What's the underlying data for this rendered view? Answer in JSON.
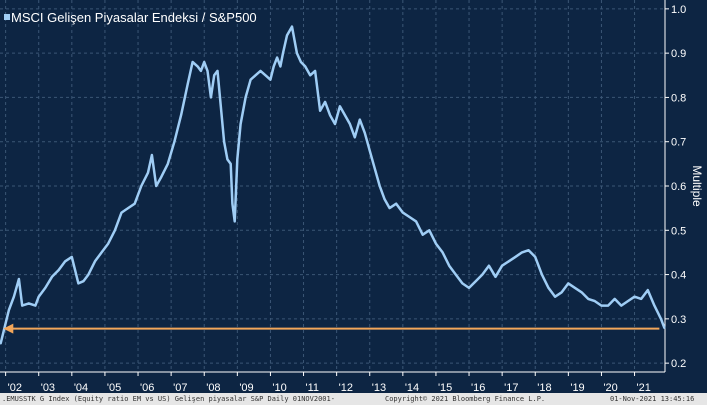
{
  "chart_data": {
    "type": "line",
    "title": "MSCI Gelişen Piyasalar Endeksi / S&P500",
    "ylabel": "Multiple",
    "xlabel": "",
    "ylim": [
      0.18,
      1.02
    ],
    "yticks": [
      0.2,
      0.3,
      0.4,
      0.5,
      0.6,
      0.7,
      0.8,
      0.9,
      1.0
    ],
    "ytick_labels": [
      "0.2",
      "0.3",
      "0.4",
      "0.5",
      "0.6",
      "0.7",
      "0.8",
      "0.9",
      "1.0"
    ],
    "xlim": [
      2001.83,
      2021.92
    ],
    "xticks": [
      2002,
      2003,
      2004,
      2005,
      2006,
      2007,
      2008,
      2009,
      2010,
      2011,
      2012,
      2013,
      2014,
      2015,
      2016,
      2017,
      2018,
      2019,
      2020,
      2021
    ],
    "xtick_labels": [
      "'02",
      "'03",
      "'04",
      "'05",
      "'06",
      "'07",
      "'08",
      "'09",
      "'10",
      "'11",
      "'12",
      "'13",
      "'14",
      "'15",
      "'16",
      "'17",
      "'18",
      "'19",
      "'20",
      "'21"
    ],
    "series": [
      {
        "name": "MSCI Gelişen Piyasalar Endeksi / S&P500",
        "color": "#9fcdf5",
        "x": [
          2001.85,
          2002.0,
          2002.1,
          2002.25,
          2002.4,
          2002.5,
          2002.7,
          2002.9,
          2003.0,
          2003.2,
          2003.4,
          2003.6,
          2003.8,
          2004.0,
          2004.2,
          2004.35,
          2004.5,
          2004.7,
          2004.9,
          2005.1,
          2005.3,
          2005.5,
          2005.7,
          2005.9,
          2006.1,
          2006.3,
          2006.42,
          2006.55,
          2006.7,
          2006.9,
          2007.1,
          2007.3,
          2007.5,
          2007.65,
          2007.8,
          2007.9,
          2008.0,
          2008.1,
          2008.2,
          2008.3,
          2008.4,
          2008.5,
          2008.6,
          2008.7,
          2008.8,
          2008.85,
          2008.92,
          2009.0,
          2009.1,
          2009.25,
          2009.4,
          2009.55,
          2009.7,
          2009.85,
          2010.0,
          2010.1,
          2010.2,
          2010.3,
          2010.38,
          2010.5,
          2010.65,
          2010.8,
          2010.92,
          2011.05,
          2011.2,
          2011.35,
          2011.5,
          2011.65,
          2011.8,
          2011.95,
          2012.1,
          2012.25,
          2012.4,
          2012.55,
          2012.7,
          2012.85,
          2013.0,
          2013.15,
          2013.3,
          2013.45,
          2013.6,
          2013.8,
          2014.0,
          2014.2,
          2014.4,
          2014.6,
          2014.8,
          2015.0,
          2015.2,
          2015.4,
          2015.6,
          2015.8,
          2016.0,
          2016.2,
          2016.4,
          2016.6,
          2016.8,
          2017.0,
          2017.2,
          2017.4,
          2017.6,
          2017.8,
          2018.0,
          2018.2,
          2018.4,
          2018.6,
          2018.8,
          2019.0,
          2019.2,
          2019.4,
          2019.6,
          2019.8,
          2020.0,
          2020.2,
          2020.4,
          2020.6,
          2020.8,
          2021.0,
          2021.2,
          2021.4,
          2021.6,
          2021.8,
          2021.9
        ],
        "y": [
          0.245,
          0.29,
          0.32,
          0.35,
          0.39,
          0.33,
          0.335,
          0.33,
          0.35,
          0.37,
          0.395,
          0.41,
          0.43,
          0.44,
          0.38,
          0.385,
          0.4,
          0.43,
          0.45,
          0.47,
          0.5,
          0.54,
          0.55,
          0.56,
          0.6,
          0.63,
          0.67,
          0.6,
          0.62,
          0.65,
          0.7,
          0.76,
          0.83,
          0.88,
          0.87,
          0.86,
          0.88,
          0.86,
          0.8,
          0.85,
          0.86,
          0.78,
          0.7,
          0.66,
          0.65,
          0.56,
          0.52,
          0.66,
          0.74,
          0.8,
          0.84,
          0.85,
          0.86,
          0.85,
          0.84,
          0.87,
          0.89,
          0.87,
          0.9,
          0.94,
          0.96,
          0.9,
          0.88,
          0.87,
          0.85,
          0.86,
          0.77,
          0.79,
          0.76,
          0.74,
          0.78,
          0.76,
          0.74,
          0.71,
          0.75,
          0.72,
          0.68,
          0.64,
          0.6,
          0.57,
          0.55,
          0.56,
          0.54,
          0.53,
          0.52,
          0.49,
          0.5,
          0.47,
          0.45,
          0.42,
          0.4,
          0.38,
          0.37,
          0.385,
          0.4,
          0.42,
          0.395,
          0.42,
          0.43,
          0.44,
          0.45,
          0.455,
          0.44,
          0.4,
          0.37,
          0.35,
          0.36,
          0.38,
          0.37,
          0.36,
          0.345,
          0.34,
          0.33,
          0.33,
          0.345,
          0.33,
          0.34,
          0.35,
          0.345,
          0.365,
          0.33,
          0.3,
          0.28
        ]
      }
    ],
    "annotations": [
      {
        "type": "arrow",
        "text": "",
        "color": "#f2a65a",
        "y": 0.278,
        "x_from": 2021.75,
        "x_to": 2001.93
      }
    ],
    "grid": true,
    "background": "#0d2543"
  },
  "footer": {
    "left": ".EMUSSTK G Index (Equity ratio EM vs US) Gelişen piyasalar S&P  Daily 01NOV2001-",
    "center": "Copyright© 2021 Bloomberg Finance L.P.",
    "right": "01-Nov-2021 13:45:16"
  }
}
